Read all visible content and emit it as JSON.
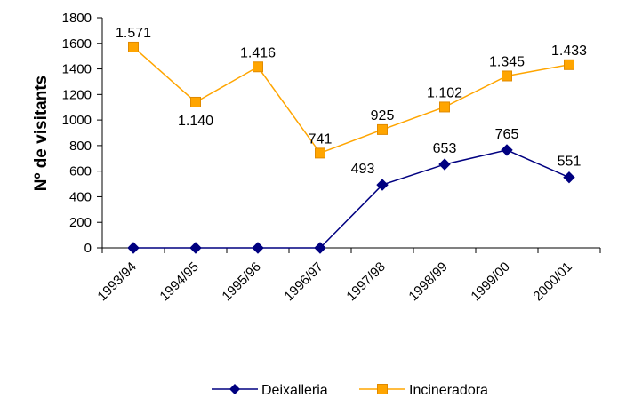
{
  "chart_data": {
    "type": "line",
    "categories": [
      "1993/94",
      "1994/95",
      "1995/96",
      "1996/97",
      "1997/98",
      "1998/99",
      "1999/00",
      "2000/01"
    ],
    "series": [
      {
        "name": "Deixalleria",
        "values": [
          0,
          0,
          0,
          0,
          493,
          653,
          765,
          551
        ],
        "labels": [
          "",
          "",
          "",
          "",
          "493",
          "653",
          "765",
          "551"
        ],
        "color": "#000080",
        "marker": "diamond"
      },
      {
        "name": "Incineradora",
        "values": [
          1571,
          1140,
          1416,
          741,
          925,
          1102,
          1345,
          1433
        ],
        "labels": [
          "1.571",
          "1.140",
          "1.416",
          "741",
          "925",
          "1.102",
          "1.345",
          "1.433"
        ],
        "color": "#FFA500",
        "marker": "square"
      }
    ],
    "ylabel": "Nº de visitants",
    "xlabel": "",
    "ylim": [
      0,
      1800
    ],
    "yticks": [
      0,
      200,
      400,
      600,
      800,
      1000,
      1200,
      1400,
      1600,
      1800
    ],
    "grid": false,
    "legend_position": "bottom"
  }
}
